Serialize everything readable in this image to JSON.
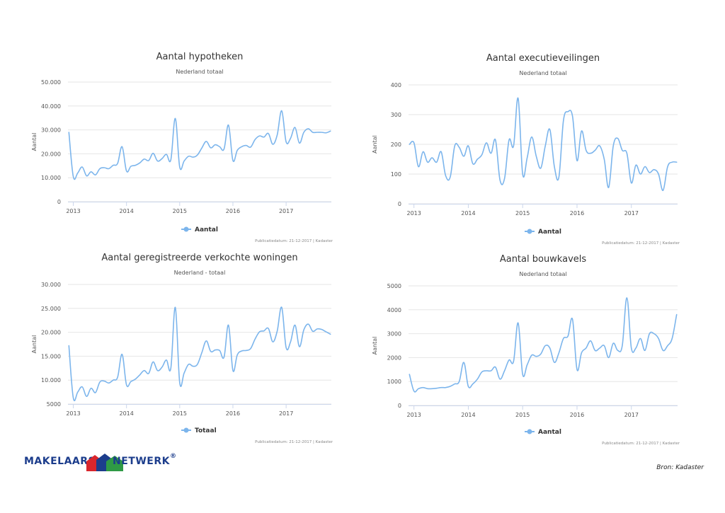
{
  "chart_data": [
    {
      "type": "line",
      "title": "Aantal hypotheken",
      "subtitle": "Nederland totaal",
      "ylabel": "Aantal",
      "ylim": [
        0,
        50000
      ],
      "yticks": [
        0,
        10000,
        20000,
        30000,
        40000,
        50000
      ],
      "ytick_labels": [
        "0",
        "10.000",
        "20.000",
        "30.000",
        "40.000",
        "50.000"
      ],
      "xlim": [
        2012.9,
        2017.85
      ],
      "xticks": [
        2013,
        2014,
        2015,
        2016,
        2017
      ],
      "xtick_labels": [
        "2013",
        "2014",
        "2015",
        "2016",
        "2017"
      ],
      "legend": "bottom-center",
      "credit": "Publicatiedatum: 21-12-2017 | Kadaster",
      "series": [
        {
          "name": "Aantal",
          "x": [
            2012.917,
            2013.0,
            2013.083,
            2013.167,
            2013.25,
            2013.333,
            2013.417,
            2013.5,
            2013.583,
            2013.667,
            2013.75,
            2013.833,
            2013.917,
            2014.0,
            2014.083,
            2014.167,
            2014.25,
            2014.333,
            2014.417,
            2014.5,
            2014.583,
            2014.667,
            2014.75,
            2014.833,
            2014.917,
            2015.0,
            2015.083,
            2015.167,
            2015.25,
            2015.333,
            2015.417,
            2015.5,
            2015.583,
            2015.667,
            2015.75,
            2015.833,
            2015.917,
            2016.0,
            2016.083,
            2016.167,
            2016.25,
            2016.333,
            2016.417,
            2016.5,
            2016.583,
            2016.667,
            2016.75,
            2016.833,
            2016.917,
            2017.0,
            2017.083,
            2017.167,
            2017.25,
            2017.333,
            2017.417,
            2017.5,
            2017.583,
            2017.667,
            2017.75,
            2017.833
          ],
          "y": [
            29000,
            10500,
            12000,
            14500,
            10800,
            12500,
            11200,
            13800,
            14200,
            13800,
            15200,
            16000,
            23000,
            12800,
            14800,
            15200,
            16200,
            17800,
            17200,
            20200,
            17000,
            18000,
            19800,
            17500,
            34800,
            14500,
            17000,
            19000,
            18600,
            19500,
            22500,
            25200,
            22500,
            23800,
            23000,
            22000,
            32000,
            17200,
            21500,
            23000,
            23500,
            22800,
            26000,
            27500,
            27000,
            28500,
            24000,
            28000,
            38000,
            25000,
            26500,
            31000,
            24500,
            29000,
            30500,
            29000,
            29000,
            29000,
            28800,
            29500
          ]
        }
      ]
    },
    {
      "type": "line",
      "title": "Aantal executieveilingen",
      "subtitle": "Nederland totaal",
      "ylabel": "Aantal",
      "ylim": [
        0,
        400
      ],
      "yticks": [
        0,
        100,
        200,
        300,
        400
      ],
      "ytick_labels": [
        "0",
        "100",
        "200",
        "300",
        "400"
      ],
      "xlim": [
        2012.9,
        2017.85
      ],
      "xticks": [
        2013,
        2014,
        2015,
        2016,
        2017
      ],
      "xtick_labels": [
        "2013",
        "2014",
        "2015",
        "2016",
        "2017"
      ],
      "legend": "bottom-center",
      "credit": "Publicatiedatum: 21-12-2017 | Kadaster",
      "series": [
        {
          "name": "Aantal",
          "x": [
            2012.917,
            2013.0,
            2013.083,
            2013.167,
            2013.25,
            2013.333,
            2013.417,
            2013.5,
            2013.583,
            2013.667,
            2013.75,
            2013.833,
            2013.917,
            2014.0,
            2014.083,
            2014.167,
            2014.25,
            2014.333,
            2014.417,
            2014.5,
            2014.583,
            2014.667,
            2014.75,
            2014.833,
            2014.917,
            2015.0,
            2015.083,
            2015.167,
            2015.25,
            2015.333,
            2015.417,
            2015.5,
            2015.583,
            2015.667,
            2015.75,
            2015.833,
            2015.917,
            2016.0,
            2016.083,
            2016.167,
            2016.25,
            2016.333,
            2016.417,
            2016.5,
            2016.583,
            2016.667,
            2016.75,
            2016.833,
            2016.917,
            2017.0,
            2017.083,
            2017.167,
            2017.25,
            2017.333,
            2017.417,
            2017.5,
            2017.583,
            2017.667,
            2017.75,
            2017.833
          ],
          "y": [
            200,
            205,
            125,
            175,
            140,
            155,
            140,
            175,
            95,
            90,
            195,
            190,
            160,
            195,
            135,
            150,
            165,
            205,
            170,
            215,
            80,
            85,
            215,
            195,
            355,
            100,
            155,
            225,
            160,
            120,
            195,
            250,
            125,
            90,
            280,
            310,
            295,
            145,
            245,
            180,
            170,
            180,
            195,
            150,
            55,
            195,
            220,
            180,
            170,
            70,
            130,
            100,
            125,
            105,
            115,
            100,
            45,
            125,
            140,
            140
          ]
        }
      ]
    },
    {
      "type": "line",
      "title": "Aantal geregistreerde verkochte woningen",
      "subtitle": "Nederland - totaal",
      "ylabel": "Aantal",
      "ylim": [
        5000,
        30000
      ],
      "yticks": [
        5000,
        10000,
        15000,
        20000,
        25000,
        30000
      ],
      "ytick_labels": [
        "5000",
        "10.000",
        "15.000",
        "20.000",
        "25.000",
        "30.000"
      ],
      "xlim": [
        2012.9,
        2017.85
      ],
      "xticks": [
        2013,
        2014,
        2015,
        2016,
        2017
      ],
      "xtick_labels": [
        "2013",
        "2014",
        "2015",
        "2016",
        "2017"
      ],
      "legend": "bottom-center",
      "credit": "Publicatiedatum: 21-12-2017 | Kadaster",
      "series": [
        {
          "name": "Totaal",
          "x": [
            2012.917,
            2013.0,
            2013.083,
            2013.167,
            2013.25,
            2013.333,
            2013.417,
            2013.5,
            2013.583,
            2013.667,
            2013.75,
            2013.833,
            2013.917,
            2014.0,
            2014.083,
            2014.167,
            2014.25,
            2014.333,
            2014.417,
            2014.5,
            2014.583,
            2014.667,
            2014.75,
            2014.833,
            2014.917,
            2015.0,
            2015.083,
            2015.167,
            2015.25,
            2015.333,
            2015.417,
            2015.5,
            2015.583,
            2015.667,
            2015.75,
            2015.833,
            2015.917,
            2016.0,
            2016.083,
            2016.167,
            2016.25,
            2016.333,
            2016.417,
            2016.5,
            2016.583,
            2016.667,
            2016.75,
            2016.833,
            2016.917,
            2017.0,
            2017.083,
            2017.167,
            2017.25,
            2017.333,
            2017.417,
            2017.5,
            2017.583,
            2017.667,
            2017.75,
            2017.833
          ],
          "y": [
            17200,
            6300,
            7500,
            8600,
            6600,
            8300,
            7400,
            9600,
            9800,
            9400,
            10000,
            10600,
            15400,
            9000,
            9700,
            10200,
            11100,
            12000,
            11400,
            13800,
            12000,
            12700,
            14200,
            12500,
            25200,
            9500,
            11500,
            13300,
            12900,
            13300,
            15800,
            18200,
            16000,
            16300,
            16200,
            14800,
            21500,
            12000,
            15300,
            16100,
            16200,
            16600,
            18600,
            20100,
            20300,
            20800,
            18000,
            20300,
            25200,
            16800,
            18000,
            21500,
            17000,
            20500,
            21700,
            20200,
            20700,
            20600,
            20100,
            19600
          ]
        }
      ]
    },
    {
      "type": "line",
      "title": "Aantal bouwkavels",
      "subtitle": "Nederland totaal",
      "ylabel": "Aantal",
      "ylim": [
        0,
        5000
      ],
      "yticks": [
        0,
        1000,
        2000,
        3000,
        4000,
        5000
      ],
      "ytick_labels": [
        "0",
        "1000",
        "2000",
        "3000",
        "4000",
        "5000"
      ],
      "xlim": [
        2012.9,
        2017.85
      ],
      "xticks": [
        2013,
        2014,
        2015,
        2016,
        2017
      ],
      "xtick_labels": [
        "2013",
        "2014",
        "2015",
        "2016",
        "2017"
      ],
      "legend": "bottom-center",
      "credit": "Publicatiedatum: 21-12-2017 | Kadaster",
      "series": [
        {
          "name": "Aantal",
          "x": [
            2012.917,
            2013.0,
            2013.083,
            2013.167,
            2013.25,
            2013.333,
            2013.417,
            2013.5,
            2013.583,
            2013.667,
            2013.75,
            2013.833,
            2013.917,
            2014.0,
            2014.083,
            2014.167,
            2014.25,
            2014.333,
            2014.417,
            2014.5,
            2014.583,
            2014.667,
            2014.75,
            2014.833,
            2014.917,
            2015.0,
            2015.083,
            2015.167,
            2015.25,
            2015.333,
            2015.417,
            2015.5,
            2015.583,
            2015.667,
            2015.75,
            2015.833,
            2015.917,
            2016.0,
            2016.083,
            2016.167,
            2016.25,
            2016.333,
            2016.417,
            2016.5,
            2016.583,
            2016.667,
            2016.75,
            2016.833,
            2016.917,
            2017.0,
            2017.083,
            2017.167,
            2017.25,
            2017.333,
            2017.417,
            2017.5,
            2017.583,
            2017.667,
            2017.75,
            2017.833
          ],
          "y": [
            1300,
            600,
            700,
            750,
            700,
            700,
            720,
            750,
            750,
            800,
            900,
            1000,
            1800,
            800,
            900,
            1100,
            1400,
            1450,
            1450,
            1600,
            1100,
            1450,
            1900,
            1850,
            3450,
            1300,
            1700,
            2100,
            2050,
            2150,
            2500,
            2400,
            1800,
            2200,
            2800,
            2900,
            3600,
            1500,
            2200,
            2400,
            2700,
            2300,
            2400,
            2500,
            2000,
            2600,
            2300,
            2500,
            4500,
            2400,
            2400,
            2800,
            2300,
            3000,
            3000,
            2800,
            2300,
            2500,
            2800,
            3800
          ]
        }
      ]
    }
  ],
  "logo": {
    "text_left": "MAKELAARS",
    "text_right": "NETWERK",
    "mark": "®"
  },
  "source": "Bron: Kadaster",
  "colors": {
    "series": "#7cb5ec",
    "logo_blue": "#1c3d8c",
    "logo_red": "#d9262c",
    "logo_green": "#2f9a45"
  }
}
